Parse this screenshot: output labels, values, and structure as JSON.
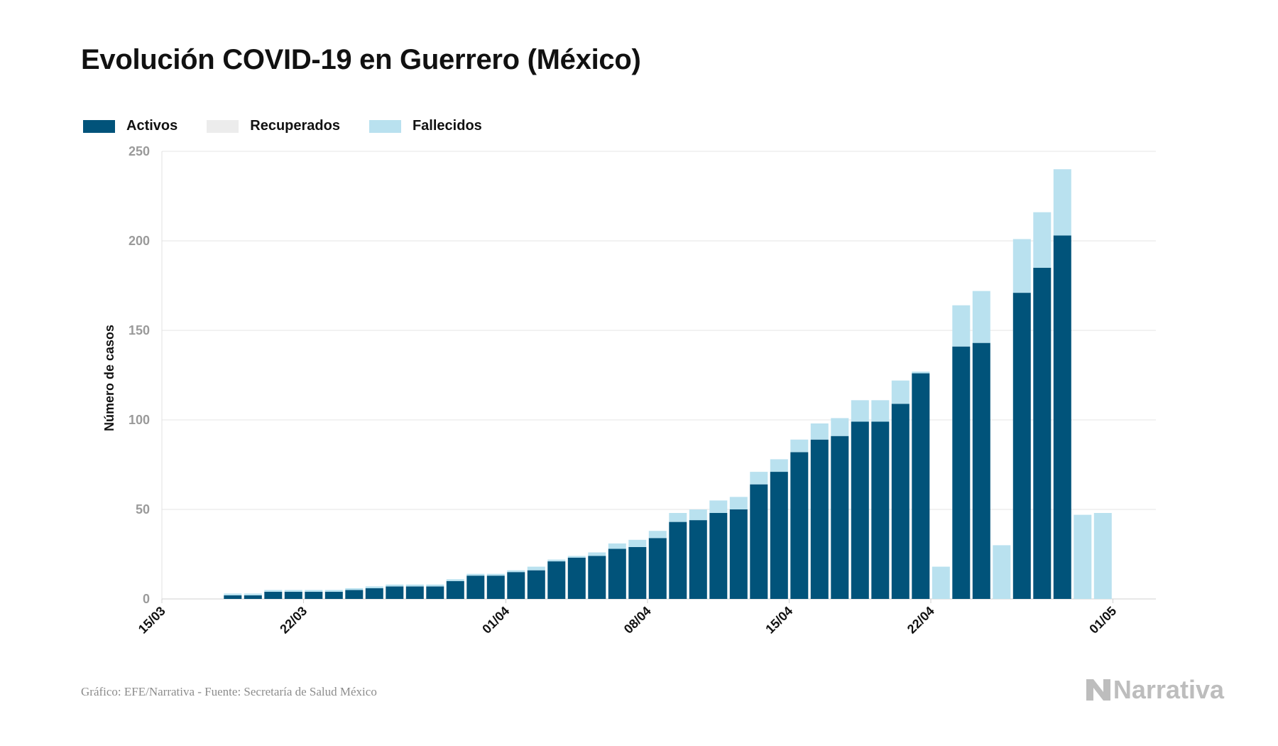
{
  "title": "Evolución COVID-19 en Guerrero (México)",
  "footer": "Gráfico: EFE/Narrativa - Fuente: Secretaría de Salud México",
  "brand": "Narrativa",
  "colors": {
    "activos": "#01537a",
    "recuperados": "#ececec",
    "fallecidos": "#b9e1ef",
    "grid": "#e6e6e6"
  },
  "chart_data": {
    "type": "bar",
    "stacked": true,
    "title": "Evolución COVID-19 en Guerrero (México)",
    "xlabel": "",
    "ylabel": "Número de casos",
    "ylim": [
      0,
      250
    ],
    "yticks": [
      0,
      50,
      100,
      150,
      200,
      250
    ],
    "grid": true,
    "legend_position": "top-left",
    "x_tick_labels": [
      "15/03",
      "22/03",
      "01/04",
      "08/04",
      "15/04",
      "22/04",
      "01/05"
    ],
    "categories": [
      "18/03",
      "19/03",
      "20/03",
      "21/03",
      "22/03",
      "23/03",
      "24/03",
      "25/03",
      "26/03",
      "27/03",
      "28/03",
      "29/03",
      "30/03",
      "31/03",
      "01/04",
      "02/04",
      "03/04",
      "04/04",
      "05/04",
      "06/04",
      "07/04",
      "08/04",
      "09/04",
      "10/04",
      "11/04",
      "12/04",
      "13/04",
      "14/04",
      "15/04",
      "16/04",
      "17/04",
      "18/04",
      "19/04",
      "20/04",
      "21/04",
      "22/04",
      "23/04",
      "24/04",
      "25/04",
      "26/04",
      "27/04",
      "28/04",
      "29/04",
      "30/04"
    ],
    "series": [
      {
        "name": "Activos",
        "values": [
          2,
          2,
          4,
          4,
          4,
          4,
          5,
          6,
          7,
          7,
          7,
          10,
          13,
          13,
          15,
          16,
          21,
          23,
          24,
          28,
          29,
          34,
          43,
          44,
          48,
          50,
          64,
          71,
          82,
          89,
          91,
          99,
          99,
          109,
          126,
          0,
          141,
          143,
          0,
          171,
          185,
          203,
          0,
          0
        ]
      },
      {
        "name": "Recuperados",
        "values": [
          0,
          0,
          0,
          0,
          0,
          0,
          0,
          0,
          0,
          0,
          0,
          0,
          0,
          0,
          0,
          0,
          0,
          0,
          0,
          0,
          0,
          0,
          0,
          0,
          0,
          0,
          0,
          0,
          0,
          0,
          0,
          0,
          0,
          0,
          0,
          0,
          0,
          0,
          0,
          0,
          0,
          0,
          0,
          0
        ]
      },
      {
        "name": "Fallecidos",
        "values": [
          1,
          1,
          1,
          1,
          1,
          1,
          1,
          1,
          1,
          1,
          1,
          1,
          1,
          1,
          1,
          2,
          1,
          1,
          2,
          3,
          4,
          4,
          5,
          6,
          7,
          7,
          7,
          7,
          7,
          9,
          10,
          12,
          12,
          13,
          1,
          18,
          23,
          29,
          30,
          30,
          31,
          37,
          47,
          48
        ]
      }
    ]
  }
}
